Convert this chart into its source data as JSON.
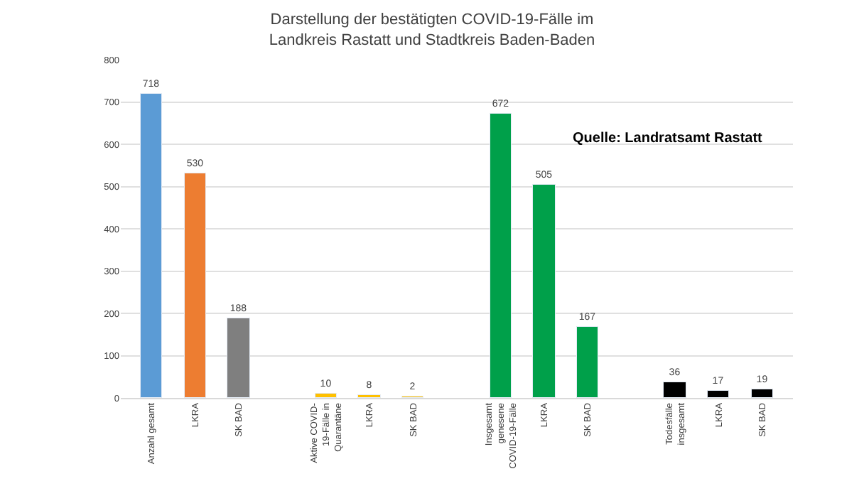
{
  "chart_data": {
    "type": "bar",
    "title": "Darstellung der bestätigten COVID-19-Fälle im\nLandkreis Rastatt und Stadtkreis Baden-Baden",
    "categories": [
      "Anzahl gesamt",
      "LKRA",
      "SK BAD",
      null,
      "Aktive COVID-\n19-Fälle in\nQuarantäne",
      "LKRA",
      "SK BAD",
      null,
      "Insgesamt\ngenesene\nCOVID-19-Fälle",
      "LKRA",
      "SK BAD",
      null,
      "Todesfälle\ninsgesamt",
      "LKRA",
      "SK BAD"
    ],
    "values": [
      718,
      530,
      188,
      null,
      10,
      8,
      2,
      null,
      672,
      505,
      167,
      null,
      36,
      17,
      19
    ],
    "colors": [
      "#5b9bd5",
      "#ed7d31",
      "#7f7f7f",
      null,
      "#ffc000",
      "#ffc000",
      "#ffc000",
      null,
      "#00a04a",
      "#00a04a",
      "#00a04a",
      null,
      "#000000",
      "#000000",
      "#000000"
    ],
    "ylim": [
      0,
      800
    ],
    "yticks": [
      0,
      100,
      200,
      300,
      400,
      500,
      600,
      700,
      800
    ],
    "grid": "y",
    "data_labels": true,
    "legend": false,
    "annotations": [
      "Quelle: Landratsamt Rastatt"
    ]
  }
}
